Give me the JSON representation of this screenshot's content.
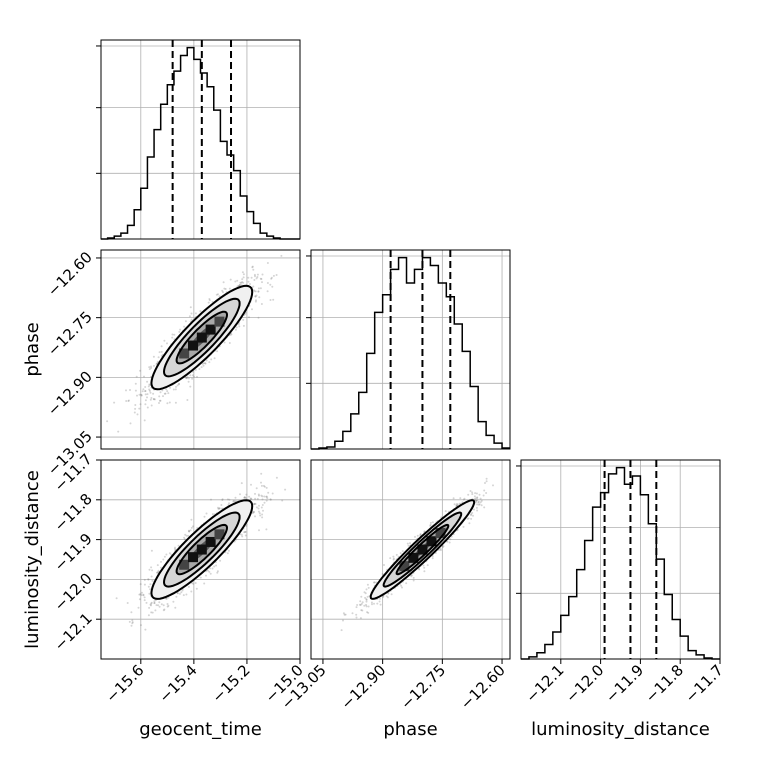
{
  "chart_data": {
    "type": "corner",
    "parameters": [
      "geocent_time",
      "phase",
      "luminosity_distance"
    ],
    "axis_labels": {
      "x": [
        "geocent_time",
        "phase",
        "luminosity_distance"
      ],
      "y": [
        "",
        "phase",
        "luminosity_distance"
      ]
    },
    "ranges": {
      "geocent_time": [
        -15.75,
        -15.0
      ],
      "phase": [
        -13.08,
        -12.58
      ],
      "luminosity_distance": [
        -12.2,
        -11.7
      ]
    },
    "ticks": {
      "geocent_time": [
        -15.6,
        -15.4,
        -15.2,
        -15.0
      ],
      "phase": [
        -13.05,
        -12.9,
        -12.75,
        -12.6
      ],
      "luminosity_distance": [
        -12.1,
        -12.0,
        -11.9,
        -11.8,
        -11.7
      ]
    },
    "tick_labels": {
      "geocent_time": [
        "−15.6",
        "−15.4",
        "−15.2",
        "−15.0"
      ],
      "phase": [
        "−13.05",
        "−12.90",
        "−12.75",
        "−12.60"
      ],
      "luminosity_distance": [
        "−12.1",
        "−12.0",
        "−11.9",
        "−11.8",
        "−11.7"
      ]
    },
    "quantiles": {
      "geocent_time": [
        -15.48,
        -15.37,
        -15.26
      ],
      "phase": [
        -12.88,
        -12.8,
        -12.73
      ],
      "luminosity_distance": [
        -11.99,
        -11.925,
        -11.86
      ]
    },
    "histograms": {
      "geocent_time": {
        "edges": [
          -15.75,
          -15.725,
          -15.7,
          -15.675,
          -15.65,
          -15.625,
          -15.6,
          -15.575,
          -15.55,
          -15.525,
          -15.5,
          -15.475,
          -15.45,
          -15.425,
          -15.4,
          -15.375,
          -15.35,
          -15.325,
          -15.3,
          -15.275,
          -15.25,
          -15.225,
          -15.2,
          -15.175,
          -15.15,
          -15.125,
          -15.1,
          -15.075,
          -15.05,
          -15.025,
          -15.0
        ],
        "counts": [
          0,
          1,
          3,
          6,
          14,
          30,
          52,
          84,
          112,
          138,
          158,
          172,
          188,
          196,
          184,
          170,
          156,
          132,
          100,
          86,
          70,
          44,
          28,
          16,
          6,
          3,
          1,
          0,
          0,
          0
        ]
      },
      "phase": {
        "edges": [
          -13.08,
          -13.06,
          -13.04,
          -13.02,
          -13.0,
          -12.98,
          -12.96,
          -12.94,
          -12.92,
          -12.9,
          -12.88,
          -12.86,
          -12.84,
          -12.82,
          -12.8,
          -12.78,
          -12.76,
          -12.74,
          -12.72,
          -12.7,
          -12.68,
          -12.66,
          -12.64,
          -12.62,
          -12.6,
          -12.58
        ],
        "counts": [
          0,
          1,
          2,
          8,
          18,
          36,
          58,
          98,
          140,
          158,
          184,
          196,
          170,
          184,
          196,
          188,
          170,
          156,
          128,
          100,
          64,
          28,
          14,
          6,
          1
        ]
      },
      "luminosity_distance": {
        "edges": [
          -12.2,
          -12.18,
          -12.16,
          -12.14,
          -12.12,
          -12.1,
          -12.08,
          -12.06,
          -12.04,
          -12.02,
          -12.0,
          -11.98,
          -11.96,
          -11.94,
          -11.92,
          -11.9,
          -11.88,
          -11.86,
          -11.84,
          -11.82,
          -11.8,
          -11.78,
          -11.76,
          -11.74,
          -11.72,
          -11.7
        ],
        "counts": [
          0,
          2,
          6,
          14,
          26,
          42,
          60,
          86,
          114,
          146,
          160,
          178,
          184,
          168,
          176,
          158,
          130,
          96,
          62,
          38,
          22,
          8,
          4,
          1,
          0
        ]
      }
    },
    "pairs": [
      {
        "x_param": "geocent_time",
        "y_param": "phase",
        "center": [
          -15.37,
          -12.8
        ],
        "sigma": [
          0.095,
          0.065
        ],
        "correlation": 0.88
      },
      {
        "x_param": "geocent_time",
        "y_param": "luminosity_distance",
        "center": [
          -15.37,
          -11.925
        ],
        "sigma": [
          0.095,
          0.062
        ],
        "correlation": 0.88
      },
      {
        "x_param": "phase",
        "y_param": "luminosity_distance",
        "center": [
          -12.8,
          -11.925
        ],
        "sigma": [
          0.065,
          0.062
        ],
        "correlation": 0.96
      }
    ],
    "contour_levels_sigma": [
      0.5,
      1.0,
      1.5,
      2.0
    ],
    "grid": true,
    "colors": {
      "density_dark": "#000000",
      "density_light": "#e8e8e8",
      "points": "#888888"
    }
  }
}
